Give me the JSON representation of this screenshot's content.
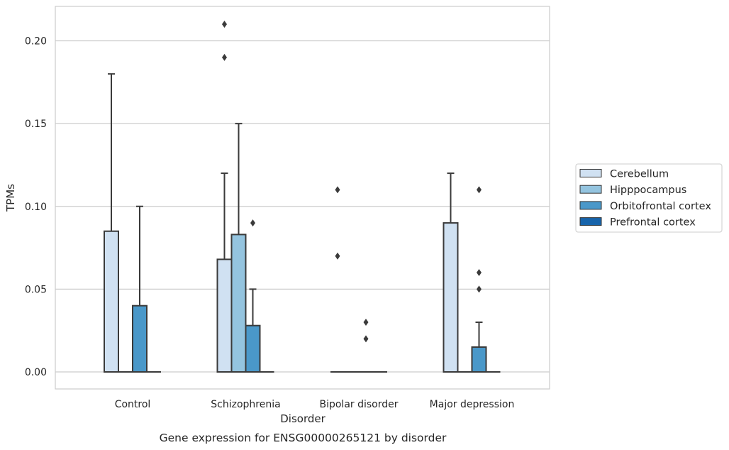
{
  "chart_data": {
    "type": "bar",
    "title": "",
    "caption": "Gene expression for ENSG00000265121 by disorder",
    "xlabel": "Disorder",
    "ylabel": "TPMs",
    "ylim": [
      -0.01,
      0.22
    ],
    "yticks": [
      "0.00",
      "0.05",
      "0.10",
      "0.15",
      "0.20"
    ],
    "ytick_values": [
      0.0,
      0.05,
      0.1,
      0.15,
      0.2
    ],
    "grid": "horizontal",
    "legend_position": "right",
    "categories": [
      "Control",
      "Schizophrenia",
      "Bipolar disorder",
      "Major depression"
    ],
    "series": [
      {
        "name": "Cerebellum",
        "color": "#d0e1f2",
        "boxes": [
          {
            "q1": 0,
            "q3": 0.085,
            "median": 0,
            "whisker_low": 0,
            "whisker_high": 0.18,
            "outliers": []
          },
          {
            "q1": 0,
            "q3": 0.068,
            "median": 0,
            "whisker_low": 0,
            "whisker_high": 0.12,
            "outliers": [
              0.19,
              0.21
            ]
          },
          {
            "q1": 0,
            "q3": 0,
            "median": 0,
            "whisker_low": 0,
            "whisker_high": 0,
            "outliers": [
              0.07,
              0.11
            ]
          },
          {
            "q1": 0,
            "q3": 0.09,
            "median": 0,
            "whisker_low": 0,
            "whisker_high": 0.12,
            "outliers": []
          }
        ]
      },
      {
        "name": "Hipppocampus",
        "color": "#94c4df",
        "boxes": [
          {
            "q1": 0,
            "q3": 0,
            "median": 0,
            "whisker_low": 0,
            "whisker_high": 0,
            "outliers": []
          },
          {
            "q1": 0,
            "q3": 0.083,
            "median": 0,
            "whisker_low": 0,
            "whisker_high": 0.15,
            "outliers": []
          },
          {
            "q1": 0,
            "q3": 0,
            "median": 0,
            "whisker_low": 0,
            "whisker_high": 0,
            "outliers": []
          },
          {
            "q1": 0,
            "q3": 0,
            "median": 0,
            "whisker_low": 0,
            "whisker_high": 0,
            "outliers": []
          }
        ]
      },
      {
        "name": "Orbitofrontal cortex",
        "color": "#4a98c9",
        "boxes": [
          {
            "q1": 0,
            "q3": 0.04,
            "median": 0,
            "whisker_low": 0,
            "whisker_high": 0.1,
            "outliers": []
          },
          {
            "q1": 0,
            "q3": 0.028,
            "median": 0,
            "whisker_low": 0,
            "whisker_high": 0.05,
            "outliers": [
              0.09
            ]
          },
          {
            "q1": 0,
            "q3": 0,
            "median": 0,
            "whisker_low": 0,
            "whisker_high": 0,
            "outliers": [
              0.02,
              0.03
            ]
          },
          {
            "q1": 0,
            "q3": 0.015,
            "median": 0,
            "whisker_low": 0,
            "whisker_high": 0.03,
            "outliers": [
              0.05,
              0.06,
              0.11
            ]
          }
        ]
      },
      {
        "name": "Prefrontal cortex",
        "color": "#1764ab",
        "boxes": [
          {
            "q1": 0,
            "q3": 0,
            "median": 0,
            "whisker_low": 0,
            "whisker_high": 0,
            "outliers": []
          },
          {
            "q1": 0,
            "q3": 0,
            "median": 0,
            "whisker_low": 0,
            "whisker_high": 0,
            "outliers": []
          },
          {
            "q1": 0,
            "q3": 0,
            "median": 0,
            "whisker_low": 0,
            "whisker_high": 0,
            "outliers": []
          },
          {
            "q1": 0,
            "q3": 0,
            "median": 0,
            "whisker_low": 0,
            "whisker_high": 0,
            "outliers": []
          }
        ]
      }
    ]
  }
}
